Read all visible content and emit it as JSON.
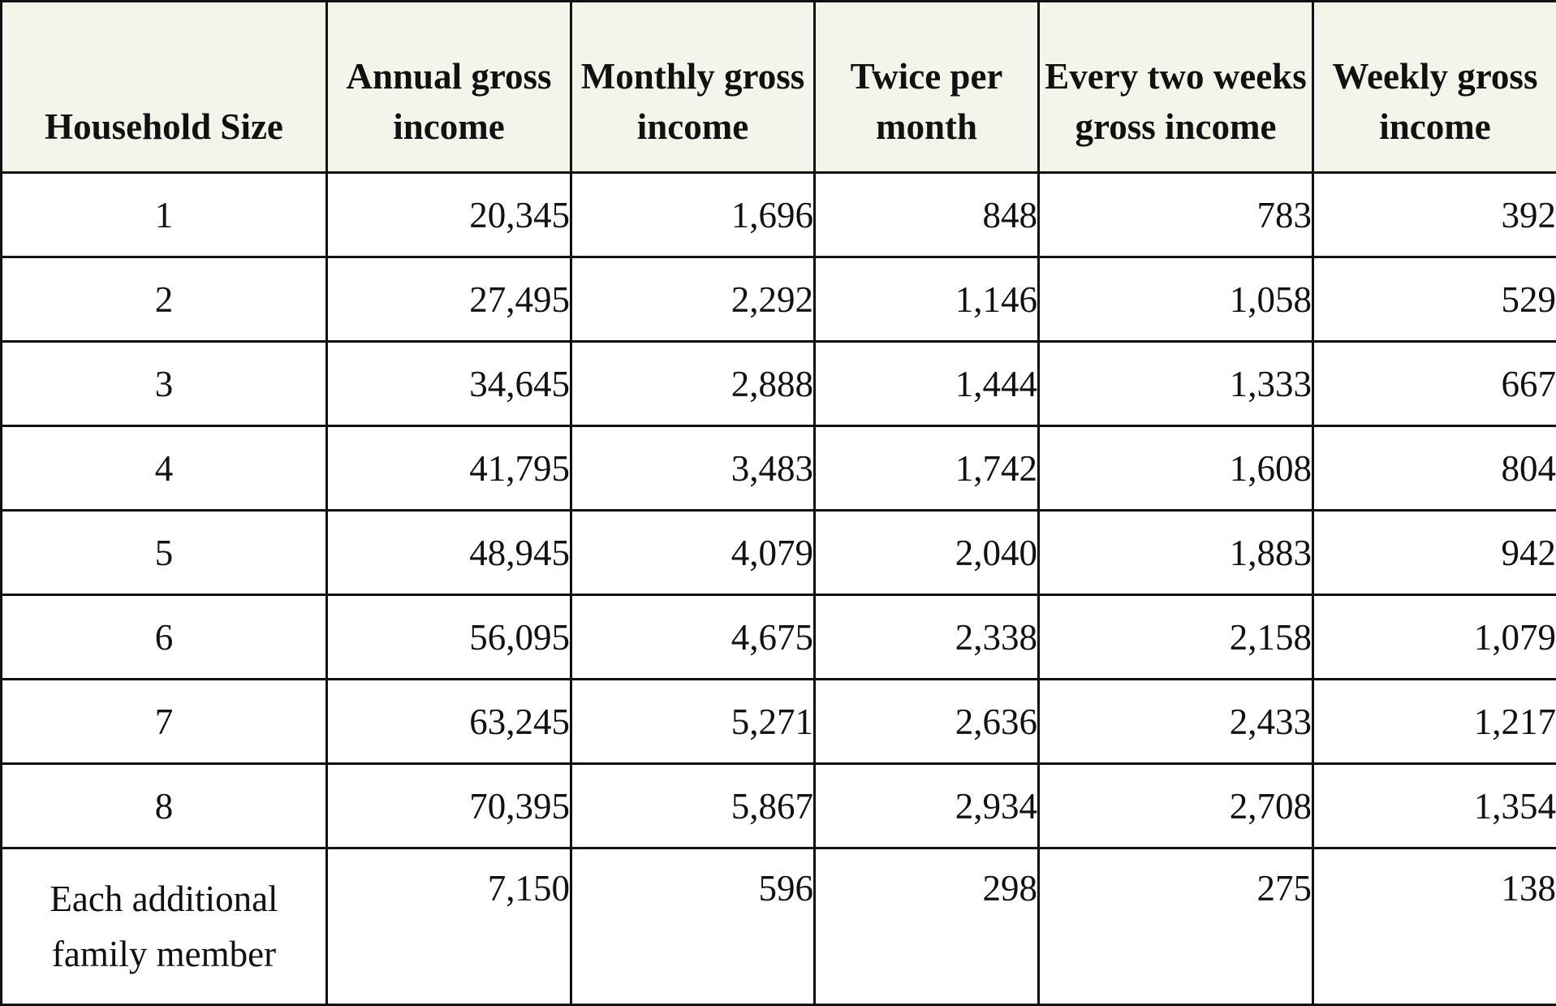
{
  "table": {
    "headers": [
      {
        "lines": [
          "Household Size"
        ]
      },
      {
        "lines": [
          "Annual gross",
          "income"
        ]
      },
      {
        "lines": [
          "Monthly gross",
          "income"
        ]
      },
      {
        "lines": [
          "Twice per",
          "month"
        ]
      },
      {
        "lines": [
          "Every two weeks",
          "gross income"
        ]
      },
      {
        "lines": [
          "Weekly gross",
          "income"
        ]
      }
    ],
    "rows": [
      [
        "1",
        "20,345",
        "1,696",
        "848",
        "783",
        "392"
      ],
      [
        "2",
        "27,495",
        "2,292",
        "1,146",
        "1,058",
        "529"
      ],
      [
        "3",
        "34,645",
        "2,888",
        "1,444",
        "1,333",
        "667"
      ],
      [
        "4",
        "41,795",
        "3,483",
        "1,742",
        "1,608",
        "804"
      ],
      [
        "5",
        "48,945",
        "4,079",
        "2,040",
        "1,883",
        "942"
      ],
      [
        "6",
        "56,095",
        "4,675",
        "2,338",
        "2,158",
        "1,079"
      ],
      [
        "7",
        "63,245",
        "5,271",
        "2,636",
        "2,433",
        "1,217"
      ],
      [
        "8",
        "70,395",
        "5,867",
        "2,934",
        "2,708",
        "1,354"
      ]
    ],
    "additional_row": {
      "label_lines": [
        "Each additional",
        "family member"
      ],
      "values": [
        "7,150",
        "596",
        "298",
        "275",
        "138"
      ]
    }
  },
  "colors": {
    "header_background": "#f2f6ea",
    "border": "#111111",
    "text": "#111111"
  }
}
